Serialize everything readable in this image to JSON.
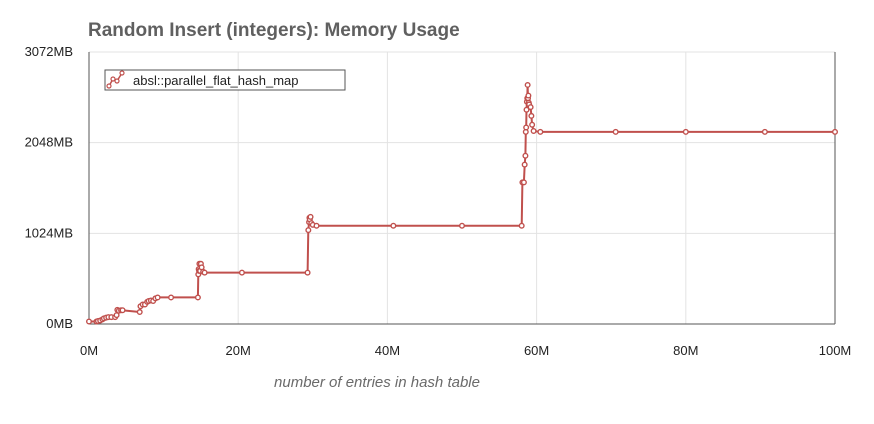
{
  "chart_data": {
    "type": "line",
    "title": "Random Insert (integers): Memory Usage",
    "xlabel": "number of entries in hash table",
    "ylabel": "",
    "xlim": [
      0,
      100000000
    ],
    "ylim": [
      0,
      3072
    ],
    "x_ticks": [
      {
        "value": 0,
        "label": "0M"
      },
      {
        "value": 20000000,
        "label": "20M"
      },
      {
        "value": 40000000,
        "label": "40M"
      },
      {
        "value": 60000000,
        "label": "60M"
      },
      {
        "value": 80000000,
        "label": "80M"
      },
      {
        "value": 100000000,
        "label": "100M"
      }
    ],
    "y_ticks": [
      {
        "value": 0,
        "label": "0MB"
      },
      {
        "value": 1024,
        "label": "1024MB"
      },
      {
        "value": 2048,
        "label": "2048MB"
      },
      {
        "value": 3072,
        "label": "3072MB"
      }
    ],
    "grid": true,
    "legend_position": "top-left",
    "color": "#c0504d",
    "series": [
      {
        "name": "absl::parallel_flat_hash_map",
        "points": [
          [
            0,
            28
          ],
          [
            1000000,
            28
          ],
          [
            1200000,
            34
          ],
          [
            1500000,
            40
          ],
          [
            1800000,
            52
          ],
          [
            2000000,
            64
          ],
          [
            2300000,
            72
          ],
          [
            2600000,
            78
          ],
          [
            3000000,
            78
          ],
          [
            3500000,
            78
          ],
          [
            3700000,
            100
          ],
          [
            3800000,
            160
          ],
          [
            4000000,
            150
          ],
          [
            4300000,
            155
          ],
          [
            4500000,
            155
          ],
          [
            6800000,
            135
          ],
          [
            6900000,
            200
          ],
          [
            7200000,
            220
          ],
          [
            7500000,
            220
          ],
          [
            7800000,
            250
          ],
          [
            8000000,
            260
          ],
          [
            8300000,
            265
          ],
          [
            8600000,
            260
          ],
          [
            8900000,
            290
          ],
          [
            9200000,
            300
          ],
          [
            11000000,
            300
          ],
          [
            14600000,
            300
          ],
          [
            14650000,
            560
          ],
          [
            14700000,
            620
          ],
          [
            14750000,
            600
          ],
          [
            14800000,
            680
          ],
          [
            14900000,
            600
          ],
          [
            15000000,
            680
          ],
          [
            15100000,
            640
          ],
          [
            15300000,
            590
          ],
          [
            15500000,
            580
          ],
          [
            20500000,
            580
          ],
          [
            29300000,
            580
          ],
          [
            29400000,
            1060
          ],
          [
            29500000,
            1150
          ],
          [
            29550000,
            1200
          ],
          [
            29600000,
            1180
          ],
          [
            29700000,
            1210
          ],
          [
            29800000,
            1140
          ],
          [
            30000000,
            1120
          ],
          [
            30500000,
            1110
          ],
          [
            40800000,
            1110
          ],
          [
            50000000,
            1110
          ],
          [
            58000000,
            1110
          ],
          [
            58100000,
            1600
          ],
          [
            58300000,
            1600
          ],
          [
            58400000,
            1800
          ],
          [
            58500000,
            1900
          ],
          [
            58550000,
            2170
          ],
          [
            58600000,
            2220
          ],
          [
            58650000,
            2420
          ],
          [
            58700000,
            2510
          ],
          [
            58750000,
            2550
          ],
          [
            58800000,
            2700
          ],
          [
            58850000,
            2550
          ],
          [
            58900000,
            2580
          ],
          [
            58950000,
            2500
          ],
          [
            59000000,
            2480
          ],
          [
            59200000,
            2450
          ],
          [
            59300000,
            2350
          ],
          [
            59400000,
            2250
          ],
          [
            59600000,
            2180
          ],
          [
            60500000,
            2170
          ],
          [
            70600000,
            2170
          ],
          [
            80000000,
            2170
          ],
          [
            90600000,
            2170
          ],
          [
            100000000,
            2170
          ]
        ]
      }
    ]
  }
}
